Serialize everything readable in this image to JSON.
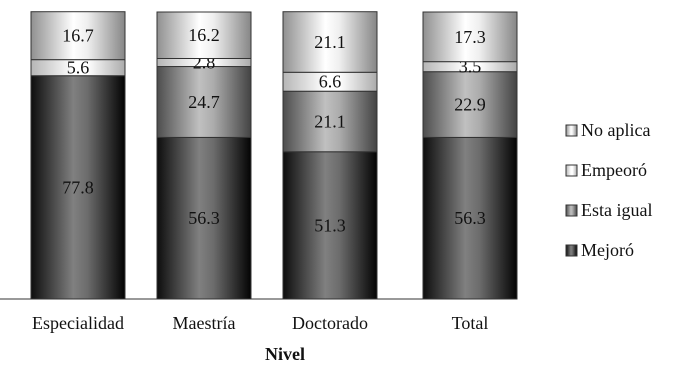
{
  "chart_data": {
    "type": "bar",
    "stacked": true,
    "categories": [
      "Especialidad",
      "Maestría",
      "Doctorado",
      "Total"
    ],
    "series": [
      {
        "name": "Mejoró",
        "values": [
          77.8,
          56.3,
          51.3,
          56.3
        ],
        "color": "#3a3a3a"
      },
      {
        "name": "Esta igual",
        "values": [
          0,
          24.7,
          21.1,
          22.9
        ],
        "color": "#7a7a7a"
      },
      {
        "name": "Empeoró",
        "values": [
          5.6,
          2.8,
          6.6,
          3.5
        ],
        "color": "#e2e2e2"
      },
      {
        "name": "No aplica",
        "values": [
          16.7,
          16.2,
          21.1,
          17.3
        ],
        "color": "#bdbdbd"
      }
    ],
    "xlabel": "Nivel",
    "ylabel": "",
    "ylim": [
      0,
      100
    ],
    "grid": false,
    "legend_position": "right"
  }
}
